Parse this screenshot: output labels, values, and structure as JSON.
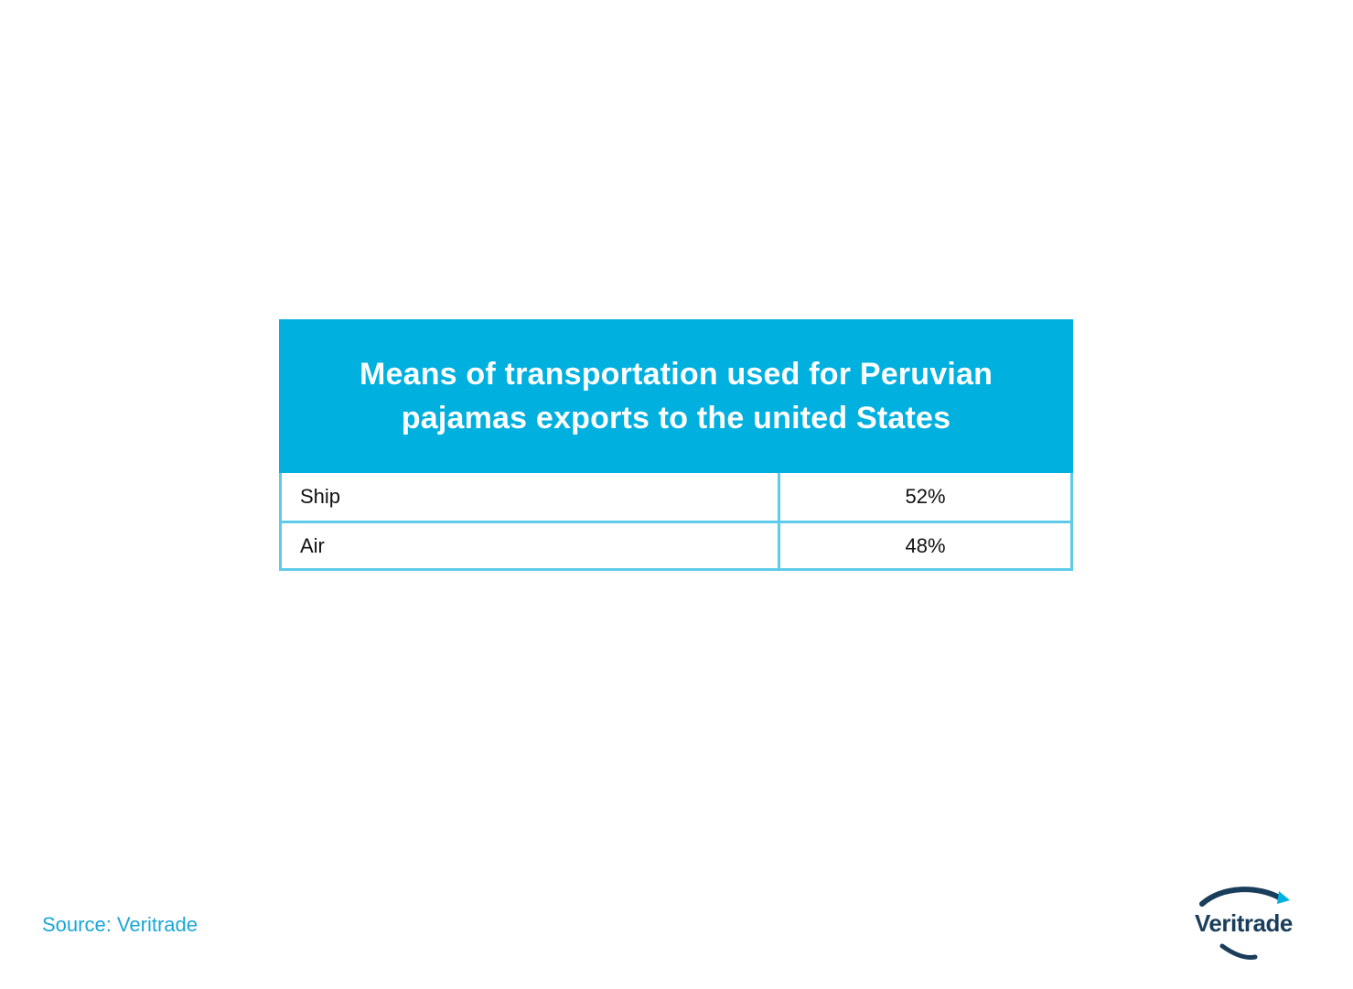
{
  "chart_data": {
    "type": "table",
    "title": "Means of transportation used for Peruvian pajamas exports to the united States",
    "rows": [
      {
        "label": "Ship",
        "value": "52%"
      },
      {
        "label": "Air",
        "value": "48%"
      }
    ]
  },
  "source": "Source: Veritrade",
  "logo": {
    "text": "Veritrade"
  },
  "colors": {
    "header_bg": "#00b0df",
    "border": "#5fcbea",
    "source_text": "#1aa7d6",
    "logo_dark": "#1a3d5c",
    "logo_accent": "#00b0df"
  }
}
